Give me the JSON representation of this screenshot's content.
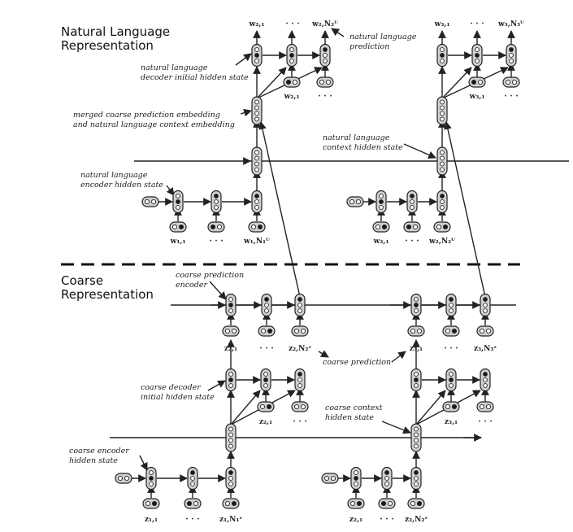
{
  "sections": {
    "natural_language": "Natural Language\nRepresentation",
    "coarse": "Coarse\nRepresentation"
  },
  "annotations": {
    "nl_prediction": "natural language\nprediction",
    "nl_decoder_initial": "natural language\ndecoder initial hidden state",
    "merged_embedding": "merged coarse prediction embedding\nand natural language context embedding",
    "nl_context_hidden": "natural language\ncontext hidden state",
    "nl_encoder_hidden": "natural language\nencoder hidden state",
    "coarse_pred_encoder": "coarse prediction\nencoder",
    "coarse_prediction": "coarse prediction",
    "coarse_decoder_initial": "coarse decoder\ninitial hidden state",
    "coarse_context_hidden": "coarse context\nhidden state",
    "coarse_encoder_hidden": "coarse encoder\nhidden state"
  },
  "labels": {
    "ellipsis": "· · ·",
    "nl_dec1_out1": "w₂,₁",
    "nl_dec1_out_last": "w₂,N₂ᵂ",
    "nl_dec1_in2": "w₂,₁",
    "nl_dec2_out1": "w₃,₁",
    "nl_dec2_out_last": "w₃,N₃ᵂ",
    "nl_dec2_in2": "w₃,₁",
    "nl_enc1_in1": "w₁,₁",
    "nl_enc1_in_last": "w₁,N₁ᵂ",
    "nl_enc2_in1": "w₂,₁",
    "nl_enc2_in_last": "w₂,N₂ᵂ",
    "c_pe1_in1": "z₂,₁",
    "c_pe1_in_last": "z₂,N₂ᶻ",
    "c_pe2_in1": "z₃,₁",
    "c_pe2_in_last": "z₃,N₃ᶻ",
    "c_dec1_in2": "z₂,₁",
    "c_dec2_in2": "z₃,₁",
    "c_enc1_in1": "z₁,₁",
    "c_enc1_in_last": "z₁,N₁ᶻ",
    "c_enc2_in1": "z₂,₁",
    "c_enc2_in_last": "z₂,N₂ᶻ"
  },
  "colors": {
    "ink": "#222222",
    "node_fill": "#d0d0d0",
    "dark_dot": "#1a1a1a"
  }
}
